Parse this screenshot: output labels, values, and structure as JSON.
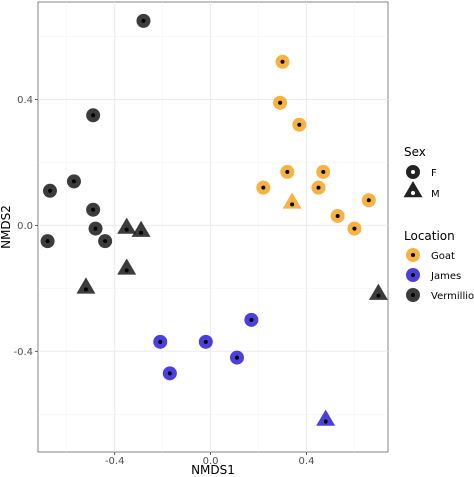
{
  "chart_data": {
    "type": "scatter",
    "xlabel": "NMDS1",
    "ylabel": "NMDS2",
    "xlim": [
      -0.72,
      0.74
    ],
    "ylim": [
      -0.72,
      0.71
    ],
    "xticks": [
      -0.4,
      0.0,
      0.4
    ],
    "yticks": [
      -0.4,
      0.0,
      0.4
    ],
    "xtick_labels": [
      "-0.4",
      "0.0",
      "0.4"
    ],
    "ytick_labels": [
      "-0.4",
      "0.0",
      "0.4"
    ],
    "grid": true,
    "legend_position": "right",
    "legends": [
      {
        "title": "Sex",
        "type": "shape",
        "entries": [
          {
            "label": "F",
            "shape": "circle"
          },
          {
            "label": "M",
            "shape": "triangle"
          }
        ]
      },
      {
        "title": "Location",
        "type": "color",
        "entries": [
          {
            "label": "Goat",
            "color": "#f5a623"
          },
          {
            "label": "James",
            "color": "#2b1fd6"
          },
          {
            "label": "Vermillion",
            "color": "#1a1a1a"
          }
        ]
      }
    ],
    "series": [
      {
        "name": "Goat",
        "color": "#f5a623",
        "points": [
          {
            "x": 0.3,
            "y": 0.52,
            "sex": "F"
          },
          {
            "x": 0.29,
            "y": 0.39,
            "sex": "F"
          },
          {
            "x": 0.37,
            "y": 0.32,
            "sex": "F"
          },
          {
            "x": 0.32,
            "y": 0.17,
            "sex": "F"
          },
          {
            "x": 0.47,
            "y": 0.17,
            "sex": "F"
          },
          {
            "x": 0.22,
            "y": 0.12,
            "sex": "F"
          },
          {
            "x": 0.45,
            "y": 0.12,
            "sex": "F"
          },
          {
            "x": 0.66,
            "y": 0.08,
            "sex": "F"
          },
          {
            "x": 0.53,
            "y": 0.03,
            "sex": "F"
          },
          {
            "x": 0.6,
            "y": -0.01,
            "sex": "F"
          },
          {
            "x": 0.34,
            "y": 0.07,
            "sex": "M"
          }
        ]
      },
      {
        "name": "James",
        "color": "#2b1fd6",
        "points": [
          {
            "x": 0.17,
            "y": -0.3,
            "sex": "F"
          },
          {
            "x": -0.21,
            "y": -0.37,
            "sex": "F"
          },
          {
            "x": -0.02,
            "y": -0.37,
            "sex": "F"
          },
          {
            "x": 0.11,
            "y": -0.42,
            "sex": "F"
          },
          {
            "x": -0.17,
            "y": -0.47,
            "sex": "F"
          },
          {
            "x": 0.48,
            "y": -0.62,
            "sex": "M"
          }
        ]
      },
      {
        "name": "Vermillion",
        "color": "#1a1a1a",
        "points": [
          {
            "x": -0.28,
            "y": 0.65,
            "sex": "F"
          },
          {
            "x": -0.49,
            "y": 0.35,
            "sex": "F"
          },
          {
            "x": -0.57,
            "y": 0.14,
            "sex": "F"
          },
          {
            "x": -0.67,
            "y": 0.11,
            "sex": "F"
          },
          {
            "x": -0.49,
            "y": 0.05,
            "sex": "F"
          },
          {
            "x": -0.48,
            "y": -0.01,
            "sex": "F"
          },
          {
            "x": -0.44,
            "y": -0.05,
            "sex": "F"
          },
          {
            "x": -0.68,
            "y": -0.05,
            "sex": "F"
          },
          {
            "x": -0.35,
            "y": -0.01,
            "sex": "M"
          },
          {
            "x": -0.29,
            "y": -0.02,
            "sex": "M"
          },
          {
            "x": -0.35,
            "y": -0.14,
            "sex": "M"
          },
          {
            "x": -0.52,
            "y": -0.2,
            "sex": "M"
          },
          {
            "x": 0.7,
            "y": -0.22,
            "sex": "M"
          }
        ]
      }
    ]
  }
}
